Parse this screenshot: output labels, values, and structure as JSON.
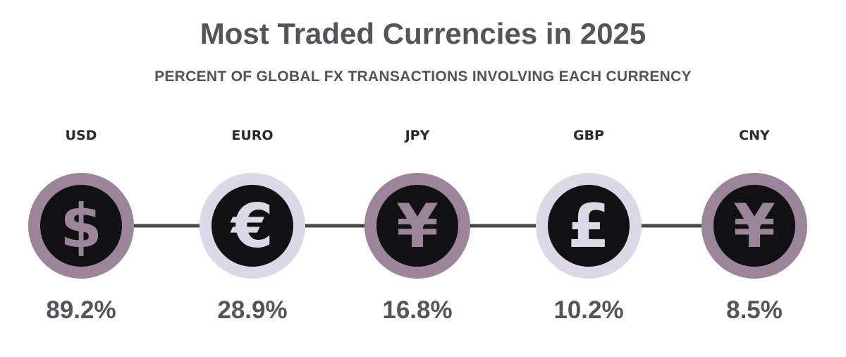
{
  "chart_data": {
    "type": "bar",
    "title": "Most Traded Currencies in 2025",
    "subtitle": "PERCENT OF GLOBAL FX TRANSACTIONS INVOLVING EACH CURRENCY",
    "categories": [
      "USD",
      "EURO",
      "JPY",
      "GBP",
      "CNY"
    ],
    "values": [
      89.2,
      28.9,
      16.8,
      10.2,
      8.5
    ],
    "value_labels": [
      "89.2%",
      "28.9%",
      "16.8%",
      "10.2%",
      "8.5%"
    ],
    "icons": [
      "dollar-icon",
      "euro-icon",
      "yen-icon",
      "pound-icon",
      "yuan-icon"
    ],
    "symbols": [
      "$",
      "€",
      "¥",
      "£",
      "¥"
    ],
    "ring_colors": [
      "#9a8599",
      "#dcd8e8",
      "#9a8599",
      "#dcd8e8",
      "#9a8599"
    ],
    "symbol_colors": [
      "#9a8599",
      "#dcd8e8",
      "#9a8599",
      "#dcd8e8",
      "#9a8599"
    ],
    "circle_fill": "#111114",
    "connector_color": "#45484c"
  }
}
